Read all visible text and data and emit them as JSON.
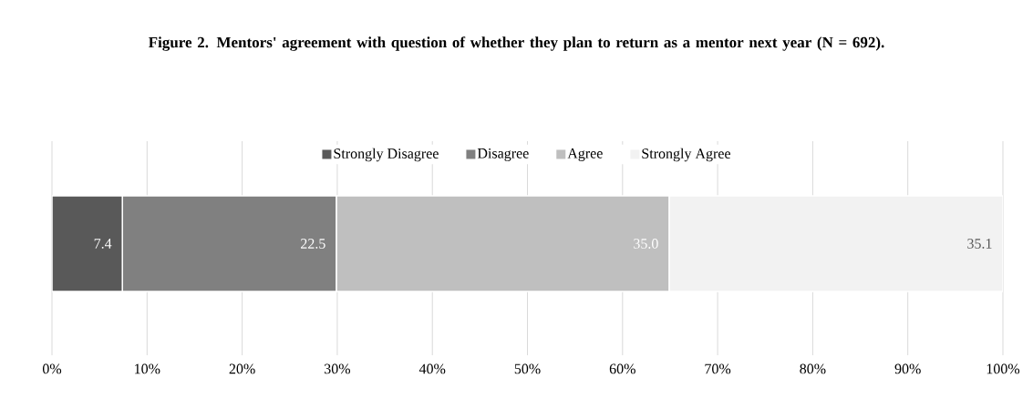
{
  "chart_data": {
    "type": "bar",
    "orientation": "horizontal",
    "stacked": true,
    "title": "Figure 2. Mentors' agreement with question of whether they plan to return as a mentor next year (N = 692).",
    "categories": [
      null
    ],
    "series": [
      {
        "name": "Strongly Disagree",
        "color": "#595959",
        "values": [
          7.4
        ],
        "value_labels": [
          "7.4"
        ]
      },
      {
        "name": "Disagree",
        "color": "#808080",
        "values": [
          22.5
        ],
        "value_labels": [
          "22.5"
        ]
      },
      {
        "name": "Agree",
        "color": "#bfbfbf",
        "values": [
          35.0
        ],
        "value_labels": [
          "35.0"
        ]
      },
      {
        "name": "Strongly Agree",
        "color": "#f2f2f2",
        "values": [
          35.1
        ],
        "value_labels": [
          "35.1"
        ]
      }
    ],
    "xlim": [
      0,
      100
    ],
    "xticks": [
      {
        "value": 0,
        "label": "0%"
      },
      {
        "value": 10,
        "label": "10%"
      },
      {
        "value": 20,
        "label": "20%"
      },
      {
        "value": 30,
        "label": "30%"
      },
      {
        "value": 40,
        "label": "40%"
      },
      {
        "value": 50,
        "label": "50%"
      },
      {
        "value": 60,
        "label": "60%"
      },
      {
        "value": 70,
        "label": "70%"
      },
      {
        "value": 80,
        "label": "80%"
      },
      {
        "value": 90,
        "label": "90%"
      },
      {
        "value": 100,
        "label": "100%"
      }
    ],
    "grid": "x",
    "legend": "top"
  }
}
